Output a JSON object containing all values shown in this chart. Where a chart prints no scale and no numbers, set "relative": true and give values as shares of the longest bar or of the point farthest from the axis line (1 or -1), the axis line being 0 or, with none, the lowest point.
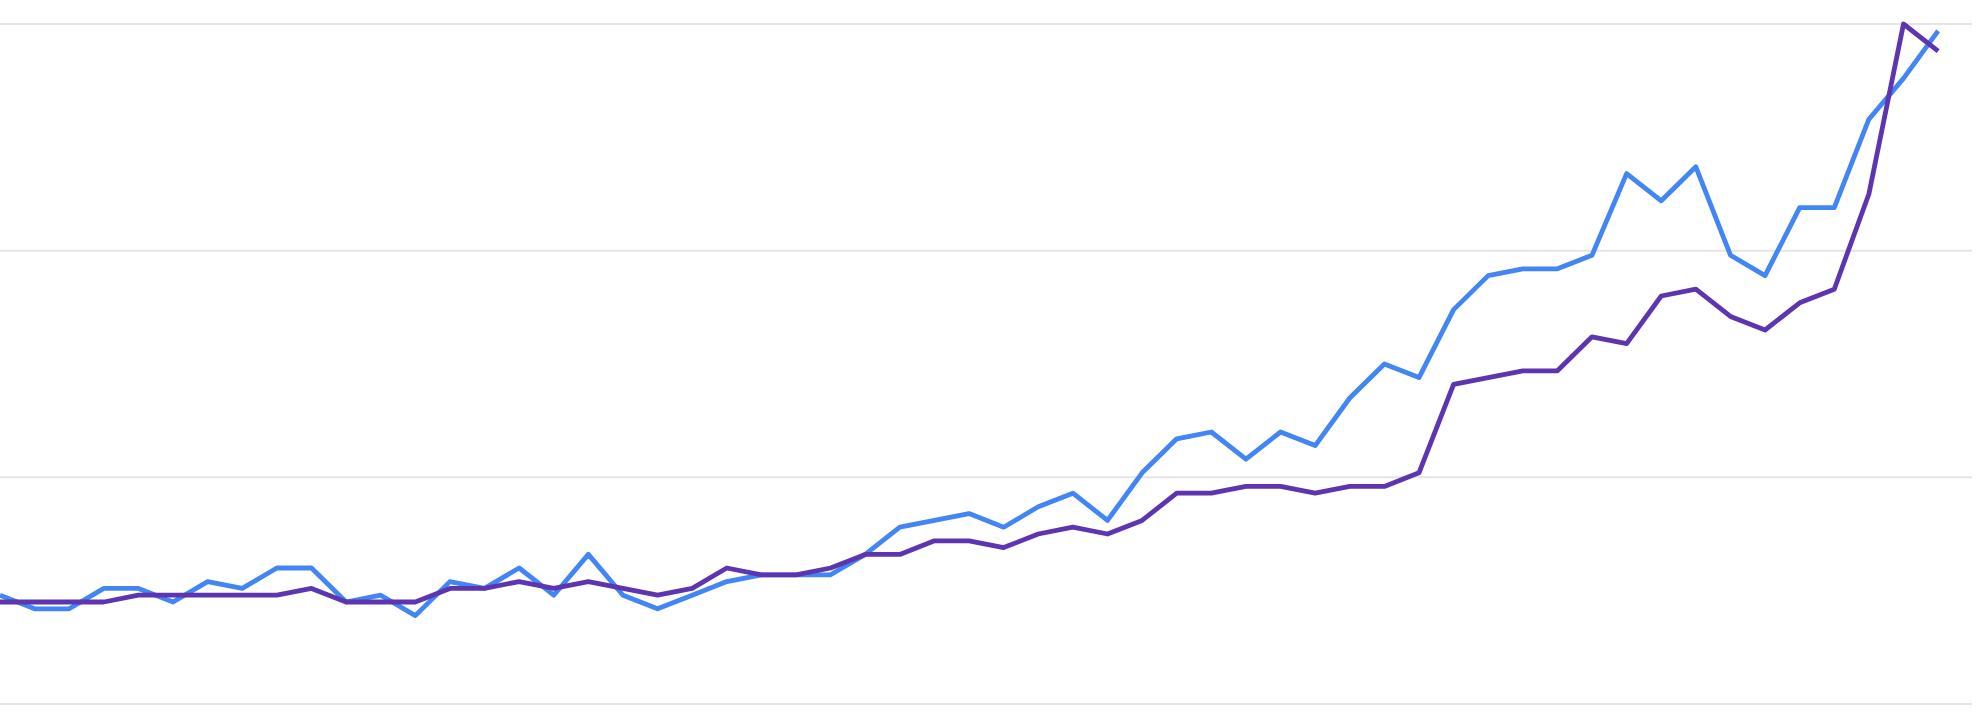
{
  "chart_data": {
    "type": "line",
    "relative": true,
    "line_style": "solid",
    "ref_lines": [
      {
        "axis": "y",
        "value": 0.3333,
        "color": "#e5e5e5"
      },
      {
        "axis": "y",
        "value": 0.6667,
        "color": "#e5e5e5"
      },
      {
        "axis": "y",
        "value": 1,
        "color": "#e5e5e5"
      }
    ],
    "categories": [
      null,
      null,
      null,
      null,
      null,
      null,
      null,
      null,
      null,
      null,
      null,
      null,
      null,
      null,
      null,
      null,
      null,
      null,
      null,
      null,
      null,
      null,
      null,
      null,
      null,
      null,
      null,
      null,
      null,
      null,
      null,
      null,
      null,
      null,
      null,
      null,
      null,
      null,
      null,
      null,
      null,
      null,
      null,
      null,
      null,
      null,
      null,
      null,
      null,
      null,
      null,
      null,
      null,
      null,
      null,
      null,
      null
    ],
    "series": [
      {
        "color": "#4285f4",
        "values": [
          0.16,
          0.14,
          0.14,
          0.17,
          0.17,
          0.15,
          0.18,
          0.17,
          0.2,
          0.2,
          0.15,
          0.16,
          0.13,
          0.18,
          0.17,
          0.2,
          0.16,
          0.22,
          0.16,
          0.14,
          0.16,
          0.18,
          0.19,
          0.19,
          0.19,
          0.22,
          0.26,
          0.27,
          0.28,
          0.26,
          0.29,
          0.31,
          0.27,
          0.34,
          0.39,
          0.4,
          0.36,
          0.4,
          0.38,
          0.45,
          0.5,
          0.48,
          0.58,
          0.63,
          0.64,
          0.64,
          0.66,
          0.78,
          0.74,
          0.79,
          0.66,
          0.63,
          0.73,
          0.73,
          0.86,
          0.92,
          0.99
        ]
      },
      {
        "color": "#5e35b1",
        "values": [
          0.15,
          0.15,
          0.15,
          0.15,
          0.16,
          0.16,
          0.16,
          0.16,
          0.16,
          0.17,
          0.15,
          0.15,
          0.15,
          0.17,
          0.17,
          0.18,
          0.17,
          0.18,
          0.17,
          0.16,
          0.17,
          0.2,
          0.19,
          0.19,
          0.2,
          0.22,
          0.22,
          0.24,
          0.24,
          0.23,
          0.25,
          0.26,
          0.25,
          0.27,
          0.31,
          0.31,
          0.32,
          0.32,
          0.31,
          0.32,
          0.32,
          0.34,
          0.47,
          0.48,
          0.49,
          0.49,
          0.54,
          0.53,
          0.6,
          0.61,
          0.57,
          0.55,
          0.59,
          0.61,
          0.75,
          1,
          0.96
        ]
      }
    ]
  }
}
